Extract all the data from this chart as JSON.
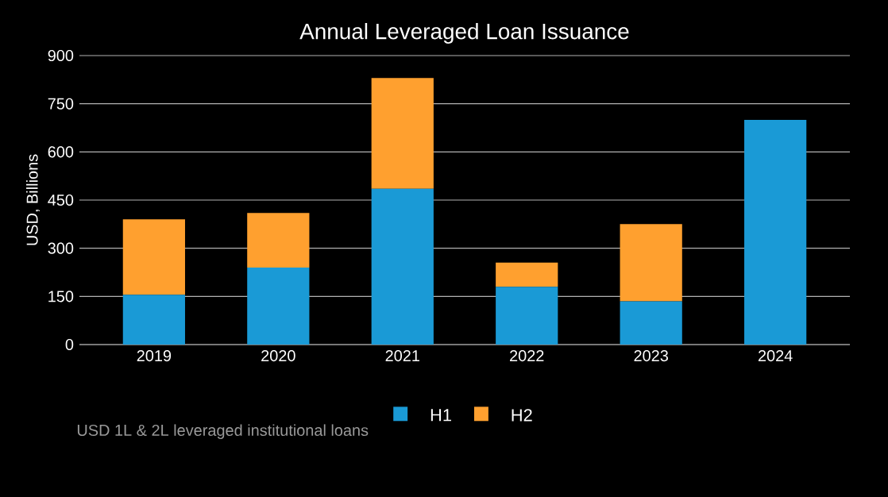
{
  "chart_data": {
    "type": "bar",
    "title": "Annual Leveraged Loan Issuance",
    "ylabel": "USD, Billions",
    "categories": [
      "2019",
      "2020",
      "2021",
      "2022",
      "2023",
      "2024"
    ],
    "series": [
      {
        "name": "H1",
        "color": "#1a9ad6",
        "values": [
          155,
          240,
          485,
          180,
          135,
          700
        ]
      },
      {
        "name": "H2",
        "color": "#ffa02f",
        "values": [
          235,
          170,
          345,
          75,
          240,
          null
        ]
      }
    ],
    "stacked": true,
    "ylim": [
      0,
      900
    ],
    "yticks": [
      0,
      150,
      300,
      450,
      600,
      750,
      900
    ],
    "grid": "y",
    "legend": "bottom",
    "annotations": [
      "USD 1L & 2L leveraged institutional loans"
    ]
  }
}
